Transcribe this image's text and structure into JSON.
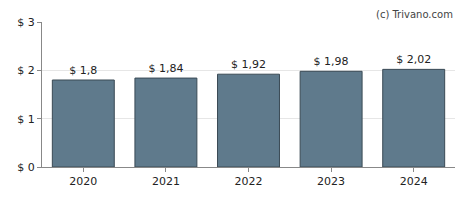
{
  "chart_data": {
    "type": "bar",
    "categories": [
      "2020",
      "2021",
      "2022",
      "2023",
      "2024"
    ],
    "values": [
      1.8,
      1.84,
      1.92,
      1.98,
      2.02
    ],
    "value_labels": [
      "$ 1,8",
      "$ 1,84",
      "$ 1,92",
      "$ 1,98",
      "$ 2,02"
    ],
    "data_labels": true,
    "color": "#5f7a8c",
    "ylim": [
      0,
      3
    ],
    "yticks": [
      {
        "value": 0,
        "label": "$ 0"
      },
      {
        "value": 1,
        "label": "$ 1"
      },
      {
        "value": 2,
        "label": "$ 2"
      },
      {
        "value": 3,
        "label": "$ 3"
      }
    ],
    "grid": true,
    "annotations": [
      "(c) Trivano.com"
    ]
  }
}
